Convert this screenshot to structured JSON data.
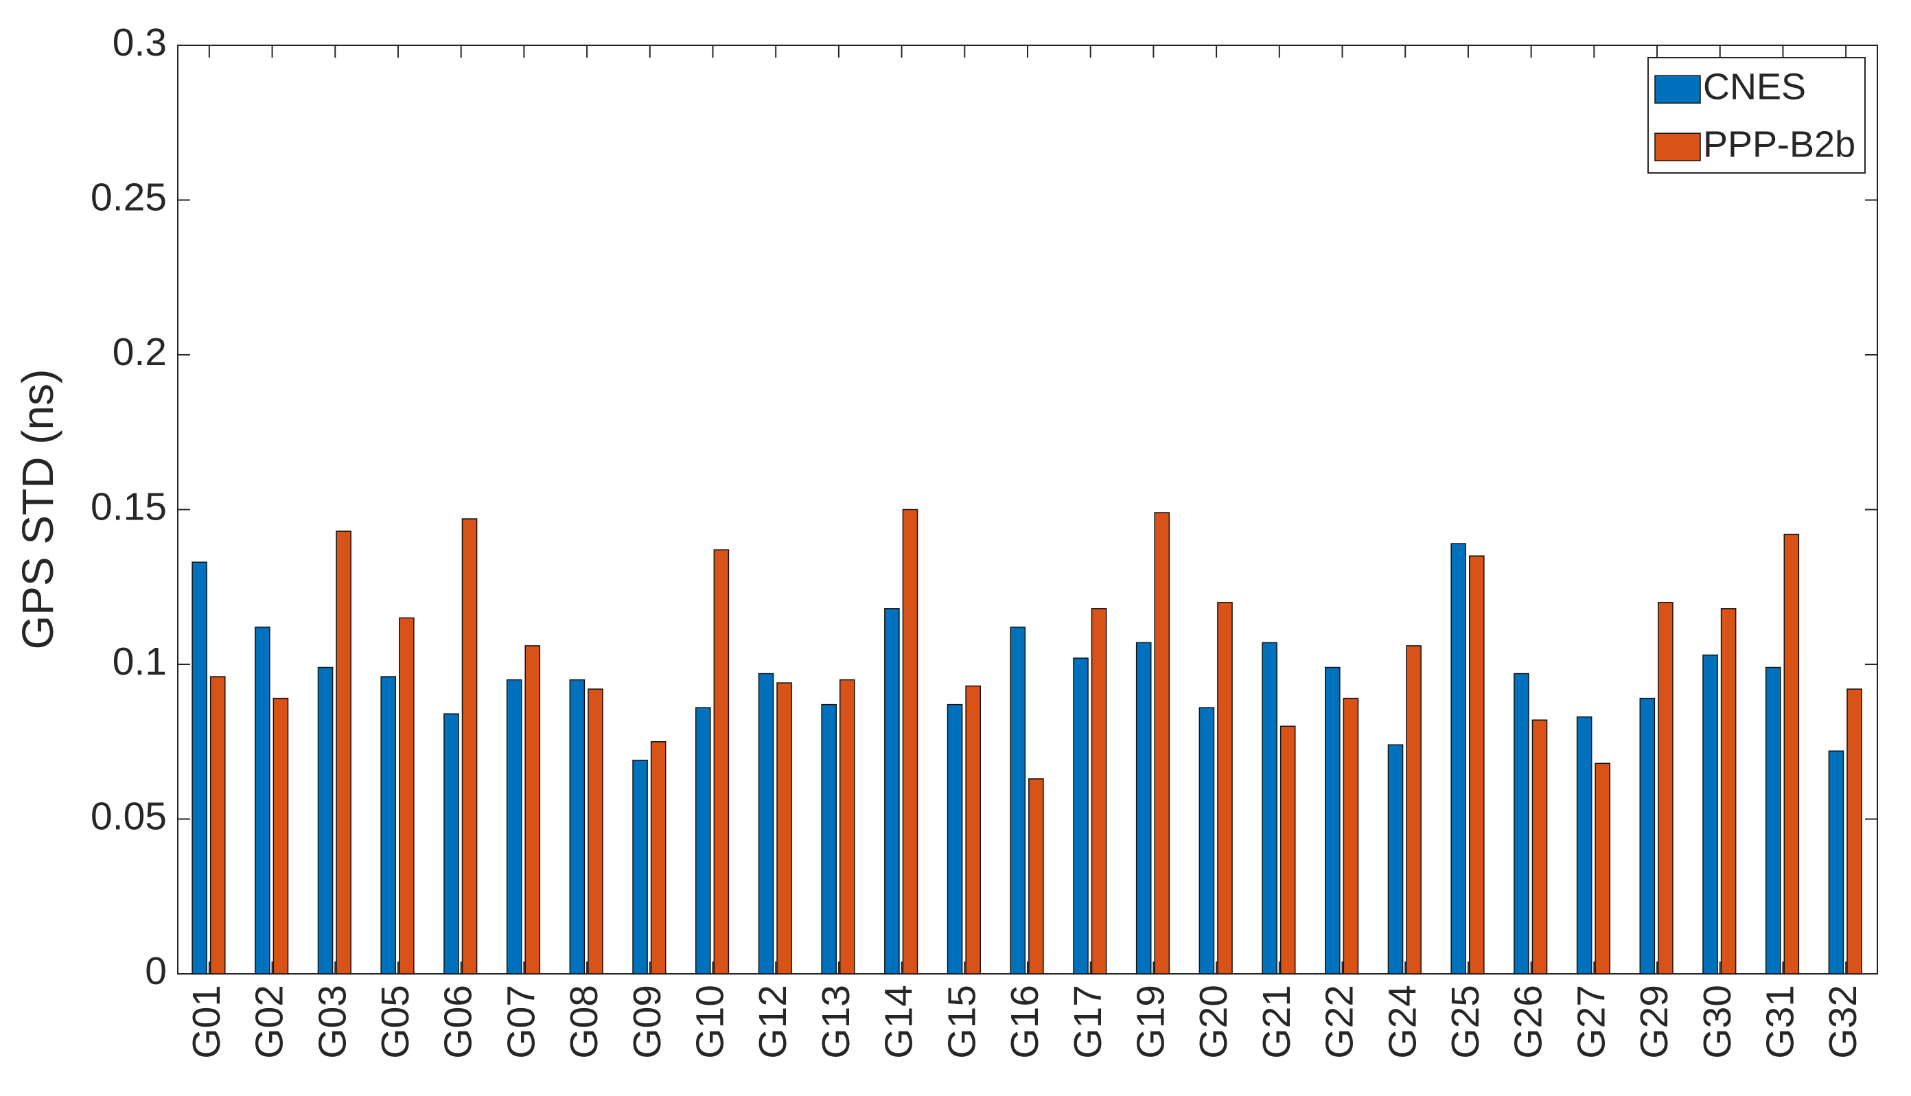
{
  "chart_data": {
    "type": "bar",
    "ylabel": "GPS STD (ns)",
    "categories": [
      "G01",
      "G02",
      "G03",
      "G05",
      "G06",
      "G07",
      "G08",
      "G09",
      "G10",
      "G12",
      "G13",
      "G14",
      "G15",
      "G16",
      "G17",
      "G19",
      "G20",
      "G21",
      "G22",
      "G24",
      "G25",
      "G26",
      "G27",
      "G29",
      "G30",
      "G31",
      "G32"
    ],
    "series": [
      {
        "name": "CNES",
        "color": "#0072bd",
        "values": [
          0.133,
          0.112,
          0.099,
          0.096,
          0.084,
          0.095,
          0.095,
          0.069,
          0.086,
          0.097,
          0.087,
          0.118,
          0.087,
          0.112,
          0.102,
          0.107,
          0.086,
          0.107,
          0.099,
          0.074,
          0.139,
          0.097,
          0.083,
          0.089,
          0.103,
          0.099,
          0.072
        ]
      },
      {
        "name": "PPP-B2b",
        "color": "#d95319",
        "values": [
          0.096,
          0.089,
          0.143,
          0.115,
          0.147,
          0.106,
          0.092,
          0.075,
          0.137,
          0.094,
          0.095,
          0.15,
          0.093,
          0.063,
          0.118,
          0.149,
          0.12,
          0.08,
          0.089,
          0.106,
          0.135,
          0.082,
          0.068,
          0.12,
          0.118,
          0.142,
          0.092
        ]
      }
    ],
    "ylim": [
      0,
      0.3
    ],
    "yticks": [
      0,
      0.05,
      0.1,
      0.15,
      0.2,
      0.25,
      0.3
    ],
    "legend": "upper right"
  }
}
